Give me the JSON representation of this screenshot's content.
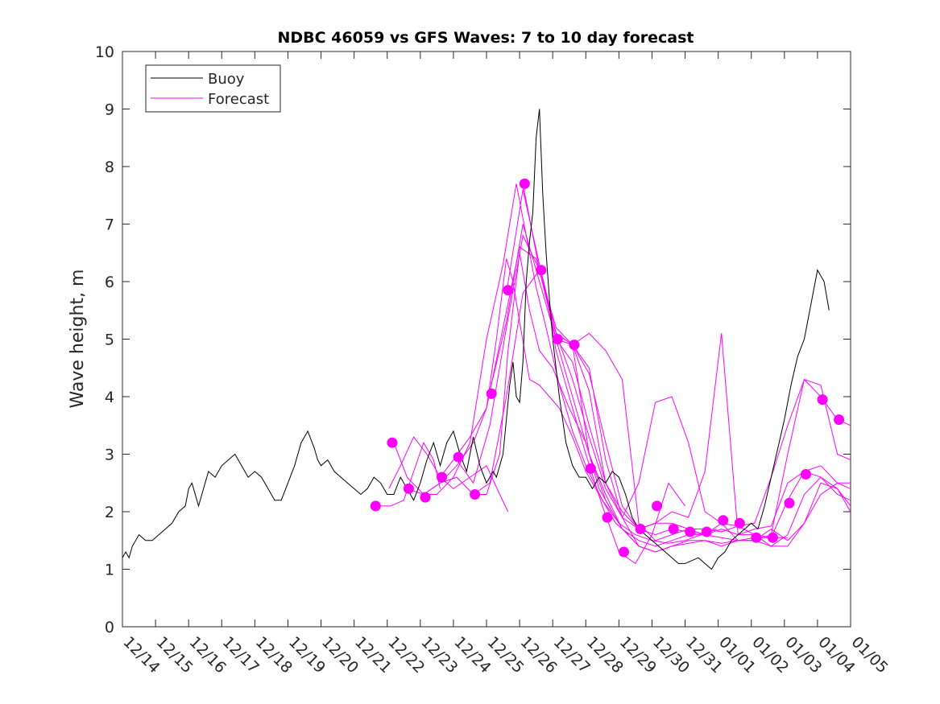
{
  "chart_data": {
    "type": "line",
    "title": "NDBC 46059 vs GFS Waves: 7 to 10 day forecast",
    "ylabel": "Wave height, m",
    "xlabel": "",
    "xlim": [
      0,
      22
    ],
    "ylim": [
      0,
      10
    ],
    "x_tick_labels": [
      "12/14",
      "12/15",
      "12/16",
      "12/17",
      "12/18",
      "12/19",
      "12/20",
      "12/21",
      "12/22",
      "12/23",
      "12/24",
      "12/25",
      "12/26",
      "12/27",
      "12/28",
      "12/29",
      "12/30",
      "12/31",
      "01/01",
      "01/02",
      "01/03",
      "01/04",
      "01/05"
    ],
    "y_tick_labels": [
      "0",
      "1",
      "2",
      "3",
      "4",
      "5",
      "6",
      "7",
      "8",
      "9",
      "10"
    ],
    "legend": {
      "position": "top-left",
      "entries": [
        {
          "label": "Buoy",
          "color": "#000000"
        },
        {
          "label": "Forecast",
          "color": "#ff00ff"
        }
      ]
    },
    "colors": {
      "buoy": "#000000",
      "forecast": "#ff00ff"
    },
    "buoy": {
      "name": "Buoy",
      "x": [
        0,
        0.1,
        0.2,
        0.3,
        0.5,
        0.7,
        0.9,
        1.1,
        1.3,
        1.5,
        1.7,
        1.9,
        2,
        2.1,
        2.3,
        2.4,
        2.5,
        2.6,
        2.8,
        3,
        3.2,
        3.4,
        3.6,
        3.8,
        4,
        4.2,
        4.4,
        4.6,
        4.8,
        5,
        5.2,
        5.4,
        5.6,
        5.8,
        5.9,
        6,
        6.2,
        6.4,
        6.6,
        6.8,
        7,
        7.2,
        7.4,
        7.6,
        7.8,
        8,
        8.2,
        8.4,
        8.6,
        8.8,
        9,
        9.2,
        9.4,
        9.6,
        9.8,
        10,
        10.2,
        10.4,
        10.6,
        10.8,
        11,
        11.2,
        11.3,
        11.5,
        11.7,
        11.8,
        11.9,
        12,
        12.1,
        12.2,
        12.3,
        12.4,
        12.5,
        12.6,
        12.7,
        12.8,
        12.9,
        13,
        13.2,
        13.4,
        13.6,
        13.8,
        14,
        14.2,
        14.4,
        14.6,
        14.8,
        15,
        15.2,
        15.4,
        15.6,
        15.8,
        16,
        16.2,
        16.4,
        16.6,
        16.8,
        17,
        17.2,
        17.4,
        17.6,
        17.8,
        18,
        18.2,
        18.4,
        18.6,
        18.8,
        19,
        19.2,
        19.4,
        19.6,
        19.8,
        20,
        20.2,
        20.4,
        20.6,
        20.8,
        21,
        21.2,
        21.35
      ],
      "y": [
        1.2,
        1.3,
        1.2,
        1.4,
        1.6,
        1.5,
        1.5,
        1.6,
        1.7,
        1.8,
        2.0,
        2.1,
        2.4,
        2.5,
        2.1,
        2.3,
        2.5,
        2.7,
        2.6,
        2.8,
        2.9,
        3.0,
        2.8,
        2.6,
        2.7,
        2.6,
        2.4,
        2.2,
        2.2,
        2.5,
        2.8,
        3.2,
        3.4,
        3.1,
        2.9,
        2.8,
        2.9,
        2.7,
        2.6,
        2.5,
        2.4,
        2.3,
        2.4,
        2.6,
        2.5,
        2.3,
        2.3,
        2.6,
        2.4,
        2.2,
        2.5,
        2.9,
        3.2,
        2.8,
        3.2,
        3.4,
        3.0,
        2.7,
        3.3,
        2.8,
        2.5,
        2.7,
        2.6,
        3.0,
        4.2,
        4.6,
        4.0,
        3.9,
        4.6,
        6.0,
        6.7,
        7.2,
        8.5,
        9.0,
        7.5,
        6.5,
        5.7,
        5.0,
        4.0,
        3.2,
        2.8,
        2.6,
        2.6,
        2.4,
        2.6,
        2.5,
        2.7,
        2.6,
        2.3,
        1.9,
        1.7,
        1.6,
        1.5,
        1.4,
        1.3,
        1.2,
        1.1,
        1.1,
        1.15,
        1.2,
        1.1,
        1.0,
        1.2,
        1.3,
        1.5,
        1.6,
        1.7,
        1.8,
        1.7,
        2.1,
        2.6,
        3.1,
        3.6,
        4.2,
        4.7,
        5.0,
        5.6,
        6.2,
        6.0,
        5.5
      ]
    },
    "forecast_series": [
      {
        "x": [
          7.65,
          8.1,
          8.5,
          8.8,
          9.1,
          9.4,
          9.6
        ],
        "y": [
          2.1,
          2.1,
          2.2,
          2.7,
          3.2,
          2.9,
          2.4
        ]
      },
      {
        "x": [
          8.05,
          8.4,
          8.8,
          9.2,
          9.6,
          10.0,
          10.5,
          11.0,
          11.4,
          11.65
        ],
        "y": [
          2.4,
          2.8,
          3.3,
          3.0,
          2.6,
          2.4,
          2.6,
          2.8,
          2.3,
          2.0
        ]
      },
      {
        "x": [
          8.2,
          8.6,
          9.1,
          9.6,
          10.1,
          10.6,
          11.0,
          11.4,
          11.65,
          12.0,
          12.3,
          12.6,
          13.0,
          13.5,
          14.0,
          14.4,
          14.8
        ],
        "y": [
          3.2,
          2.6,
          2.3,
          2.5,
          2.6,
          2.3,
          2.3,
          3.0,
          4.8,
          6.5,
          5.5,
          4.8,
          4.5,
          3.8,
          3.2,
          2.4,
          2.0
        ]
      },
      {
        "x": [
          8.6,
          9.1,
          9.6,
          10.1,
          10.6,
          11.0,
          11.3,
          11.6,
          11.8,
          12.0,
          12.3,
          12.6,
          12.9,
          13.2,
          13.6,
          14.0,
          14.5,
          14.9,
          15.3
        ],
        "y": [
          2.4,
          2.3,
          2.5,
          2.8,
          3.2,
          3.8,
          5.0,
          6.4,
          6.0,
          5.3,
          4.3,
          4.2,
          4.0,
          3.8,
          3.3,
          2.7,
          2.2,
          1.8,
          1.6
        ]
      },
      {
        "x": [
          9.1,
          9.5,
          10.0,
          10.5,
          11.0,
          11.5,
          11.9,
          12.2,
          12.5,
          12.8,
          13.2,
          13.6,
          14.0,
          14.5,
          15.0,
          15.5,
          16.0,
          16.5,
          17.0,
          17.5,
          17.95
        ],
        "y": [
          2.3,
          2.3,
          2.6,
          3.2,
          5.0,
          6.3,
          7.7,
          6.8,
          5.9,
          5.2,
          4.2,
          3.4,
          2.8,
          2.2,
          1.8,
          1.6,
          1.5,
          1.45,
          1.5,
          1.6,
          1.7
        ]
      },
      {
        "x": [
          9.6,
          10.0,
          10.5,
          11.0,
          11.5,
          12.0,
          12.5,
          12.8,
          13.1,
          13.5,
          14.0,
          14.5,
          15.0,
          15.5,
          16.0,
          16.5,
          17.0
        ],
        "y": [
          2.6,
          2.9,
          3.3,
          3.8,
          5.2,
          6.6,
          6.4,
          5.8,
          4.8,
          4.0,
          3.0,
          2.1,
          1.3,
          1.1,
          1.6,
          2.5,
          2.1
        ]
      },
      {
        "x": [
          10.1,
          10.6,
          11.1,
          11.6,
          12.1,
          12.6,
          13.1,
          13.6,
          14.1,
          14.6,
          15.1,
          15.6,
          16.1,
          16.6,
          17.1,
          17.6,
          18.1,
          18.6,
          19.1,
          19.6,
          20.1
        ],
        "y": [
          2.9,
          2.5,
          3.5,
          5.2,
          6.8,
          6.2,
          5.1,
          4.3,
          3.3,
          2.4,
          1.9,
          1.7,
          1.6,
          1.7,
          1.65,
          1.6,
          1.55,
          1.5,
          1.55,
          1.55,
          1.55
        ]
      },
      {
        "x": [
          10.6,
          11.1,
          11.6,
          12.1,
          12.6,
          13.1,
          13.6,
          14.1,
          14.6,
          15.1,
          15.6,
          16.1,
          16.6,
          17.1,
          17.6,
          18.1,
          18.6,
          19.1,
          19.6,
          20.1,
          20.6,
          21.1,
          21.6,
          22.0
        ],
        "y": [
          2.3,
          2.5,
          4.0,
          5.8,
          6.2,
          5.1,
          4.9,
          4.4,
          3.2,
          2.1,
          1.7,
          1.8,
          1.8,
          1.7,
          1.7,
          1.65,
          1.75,
          1.8,
          2.6,
          3.5,
          4.3,
          4.0,
          3.6,
          3.5
        ]
      },
      {
        "x": [
          11.1,
          11.6,
          12.1,
          12.6,
          13.1,
          13.6,
          14.1,
          14.6,
          15.1,
          15.6,
          16.1,
          16.6,
          17.1,
          17.6,
          18.1,
          18.6,
          19.1,
          19.6,
          20.1,
          20.6,
          21.1,
          21.6,
          22.0
        ],
        "y": [
          4.1,
          5.3,
          7.0,
          6.0,
          5.0,
          4.9,
          4.5,
          2.9,
          1.9,
          2.5,
          3.9,
          4.0,
          3.2,
          2.0,
          1.8,
          1.5,
          1.5,
          1.6,
          3.0,
          4.3,
          4.2,
          3.0,
          2.9
        ]
      },
      {
        "x": [
          11.6,
          12.1,
          12.6,
          13.1,
          13.6,
          14.1,
          14.6,
          15.1,
          15.6,
          16.1,
          16.6,
          17.1,
          17.6,
          18.1,
          18.6,
          19.1,
          19.6,
          20.1,
          20.6,
          21.1,
          21.6,
          22.0
        ],
        "y": [
          5.8,
          7.6,
          6.3,
          5.1,
          4.9,
          4.1,
          2.5,
          2.0,
          1.7,
          1.8,
          2.0,
          1.9,
          2.7,
          5.1,
          1.6,
          1.7,
          1.75,
          2.5,
          2.7,
          2.8,
          2.5,
          2.4
        ]
      },
      {
        "x": [
          12.1,
          12.6,
          13.1,
          13.6,
          14.1,
          14.6,
          15.1,
          15.6,
          16.1,
          16.6,
          17.1,
          17.6,
          18.1,
          18.6,
          19.1,
          19.6,
          20.1,
          20.6,
          21.1,
          21.6,
          22.0
        ],
        "y": [
          7.7,
          6.2,
          5.2,
          4.9,
          5.1,
          4.8,
          4.3,
          1.8,
          1.5,
          1.6,
          1.7,
          1.6,
          1.7,
          1.6,
          1.6,
          1.55,
          2.2,
          2.7,
          2.6,
          2.4,
          2.0
        ]
      },
      {
        "x": [
          12.6,
          13.1,
          13.6,
          14.1,
          14.6,
          15.1,
          15.6,
          16.1,
          16.6,
          17.1,
          17.6,
          18.1,
          18.6,
          19.1,
          19.6,
          20.1,
          20.6,
          21.1,
          21.6,
          22.0
        ],
        "y": [
          6.2,
          5.0,
          4.0,
          3.0,
          2.3,
          1.7,
          1.5,
          1.4,
          1.5,
          1.6,
          1.6,
          1.8,
          1.75,
          1.6,
          1.4,
          1.6,
          2.3,
          2.6,
          2.3,
          2.2
        ]
      },
      {
        "x": [
          13.1,
          13.6,
          14.1,
          14.6,
          15.1,
          15.6,
          16.1,
          16.6,
          17.1,
          17.6,
          18.1,
          18.6,
          19.1,
          19.6,
          20.1,
          20.6,
          21.1,
          21.6,
          22.0
        ],
        "y": [
          5.0,
          4.6,
          3.5,
          2.5,
          1.9,
          1.4,
          1.3,
          1.4,
          1.45,
          1.5,
          1.4,
          1.5,
          1.5,
          1.7,
          1.5,
          1.8,
          2.5,
          2.4,
          2.1
        ]
      },
      {
        "x": [
          13.6,
          14.1,
          14.6,
          15.1,
          15.6,
          16.1,
          16.6,
          17.1,
          17.6,
          18.1,
          18.6,
          19.1,
          19.6,
          20.1,
          20.6,
          21.1,
          21.6,
          22.0
        ],
        "y": [
          4.9,
          3.0,
          2.2,
          1.7,
          1.4,
          1.3,
          1.4,
          1.5,
          1.5,
          1.45,
          1.5,
          1.5,
          1.4,
          1.4,
          1.8,
          2.3,
          2.5,
          2.5
        ]
      }
    ],
    "forecast_markers": {
      "x": [
        7.65,
        8.15,
        8.65,
        9.15,
        9.65,
        10.15,
        10.65,
        11.15,
        11.65,
        12.15,
        12.65,
        13.15,
        13.65,
        14.15,
        14.65,
        15.15,
        15.65,
        16.15,
        16.65,
        17.15,
        17.65,
        18.15,
        18.65,
        19.15,
        19.65,
        20.15,
        20.65,
        21.15,
        21.65
      ],
      "y": [
        2.1,
        3.2,
        2.4,
        2.25,
        2.6,
        2.95,
        2.3,
        4.05,
        5.85,
        7.7,
        6.2,
        5.0,
        4.9,
        2.75,
        1.9,
        1.3,
        1.7,
        2.1,
        1.7,
        1.65,
        1.65,
        1.85,
        1.8,
        1.55,
        1.55,
        2.15,
        2.65,
        3.95,
        3.6
      ]
    }
  }
}
